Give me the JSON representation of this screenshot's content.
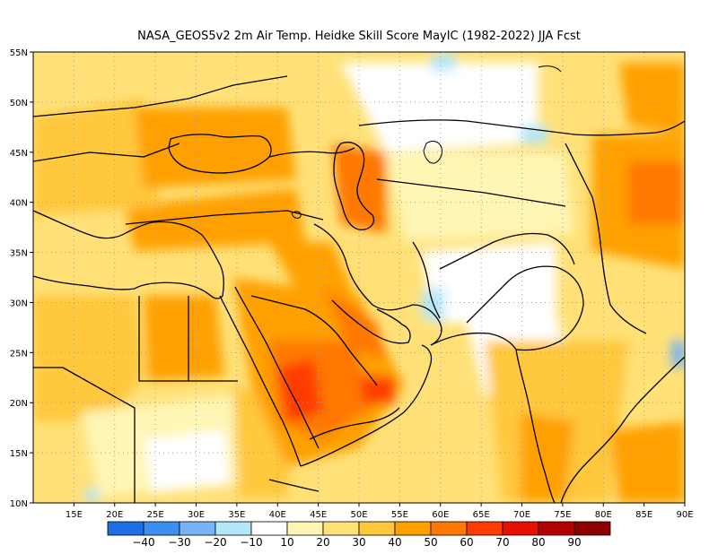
{
  "title": "NASA_GEOS5v2  2m Air Temp. Heidke Skill Score MayIC (1982-2022) JJA Fcst",
  "map": {
    "lon_range": [
      10,
      90
    ],
    "lat_range": [
      10,
      55
    ],
    "lon_ticks": [
      "15E",
      "20E",
      "25E",
      "30E",
      "35E",
      "40E",
      "45E",
      "50E",
      "55E",
      "60E",
      "65E",
      "70E",
      "75E",
      "80E",
      "85E",
      "90E"
    ],
    "lat_ticks": [
      "55N",
      "50N",
      "45N",
      "40N",
      "35N",
      "30N",
      "25N",
      "20N",
      "15N",
      "10N"
    ],
    "gridlines": "dotted"
  },
  "colorbar": {
    "labels": [
      "−40",
      "−30",
      "−20",
      "−10",
      "10",
      "20",
      "30",
      "40",
      "50",
      "60",
      "70",
      "80",
      "90"
    ],
    "colors": [
      "#1e6fe6",
      "#3c8ef0",
      "#78b4f5",
      "#b4e6fa",
      "#ffffff",
      "#fff5b4",
      "#ffe178",
      "#ffc83c",
      "#ffa000",
      "#ff7800",
      "#ff3c00",
      "#e60f00",
      "#b40000",
      "#8c0000"
    ]
  },
  "regions": {
    "base": "#ffe178",
    "patches": [
      {
        "name": "patch-north-africa-west",
        "color": "#ffc83c"
      },
      {
        "name": "patch-egypt",
        "color": "#ffa000"
      },
      {
        "name": "patch-sahara-south",
        "color": "#fff5b4"
      },
      {
        "name": "patch-sudan-white",
        "color": "#ffffff"
      },
      {
        "name": "patch-ethiopia",
        "color": "#ffc83c"
      },
      {
        "name": "patch-arabia",
        "color": "#ffa000"
      },
      {
        "name": "patch-arabia-core",
        "color": "#ff7800"
      },
      {
        "name": "patch-arabia-hot",
        "color": "#ff3c00"
      },
      {
        "name": "patch-iraq",
        "color": "#ffa000"
      },
      {
        "name": "patch-gulf-hot",
        "color": "#ff7800"
      },
      {
        "name": "patch-caspian",
        "color": "#ff7800"
      },
      {
        "name": "patch-anatolia",
        "color": "#ffa000"
      },
      {
        "name": "patch-balkans",
        "color": "#ffc83c"
      },
      {
        "name": "patch-ukraine",
        "color": "#ffa000"
      },
      {
        "name": "patch-kazakh-white",
        "color": "#ffffff"
      },
      {
        "name": "patch-central-asia",
        "color": "#fff5b4"
      },
      {
        "name": "patch-afghan-white",
        "color": "#ffffff"
      },
      {
        "name": "patch-pakistan-white",
        "color": "#ffffff"
      },
      {
        "name": "patch-india",
        "color": "#ffc83c"
      },
      {
        "name": "patch-india-south",
        "color": "#ffa000"
      },
      {
        "name": "patch-tibet",
        "color": "#ffa000"
      },
      {
        "name": "patch-tibet-hot",
        "color": "#ff7800"
      },
      {
        "name": "patch-mongolia",
        "color": "#ffa000"
      },
      {
        "name": "patch-bay-bengal",
        "color": "#ffa000"
      },
      {
        "name": "patch-blue-north",
        "color": "#b4e6fa"
      },
      {
        "name": "patch-blue-iran",
        "color": "#b4e6fa"
      },
      {
        "name": "patch-blue-kaz",
        "color": "#b4e6fa"
      },
      {
        "name": "patch-blue-africa",
        "color": "#b4e6fa"
      },
      {
        "name": "patch-blue-east",
        "color": "#78b4f5"
      }
    ]
  }
}
